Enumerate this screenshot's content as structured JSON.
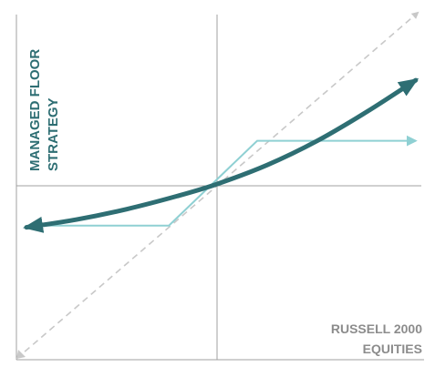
{
  "chart_data": {
    "type": "line",
    "title": "",
    "xlabel": [
      "RUSSELL 2000",
      "EQUITIES"
    ],
    "ylabel": [
      "MANAGED FLOOR",
      "STRATEGY"
    ],
    "xlim": [
      -1,
      1
    ],
    "ylim": [
      -1,
      1
    ],
    "grid": false,
    "series": [
      {
        "style": "dashed-arrow",
        "color": "#c8c8c8",
        "x": [
          -1,
          1
        ],
        "y": [
          -1,
          1
        ]
      },
      {
        "style": "capped-floor-arrow",
        "color": "#8fd0d3",
        "x": [
          -0.93,
          -0.24,
          0.2,
          0.99
        ],
        "y": [
          -0.23,
          -0.23,
          0.26,
          0.26
        ]
      },
      {
        "style": "curve-double-arrow",
        "color": "#2e6e73",
        "x": [
          -0.95,
          -0.7,
          -0.45,
          -0.2,
          0.0,
          0.25,
          0.5,
          0.75,
          0.99
        ],
        "y": [
          -0.24,
          -0.195,
          -0.135,
          -0.06,
          0.01,
          0.12,
          0.26,
          0.43,
          0.61
        ]
      }
    ],
    "colors": {
      "axis": "#a0a0a0",
      "ylabel": "#2e6e73",
      "xlabel": "#8c8c8c"
    }
  }
}
